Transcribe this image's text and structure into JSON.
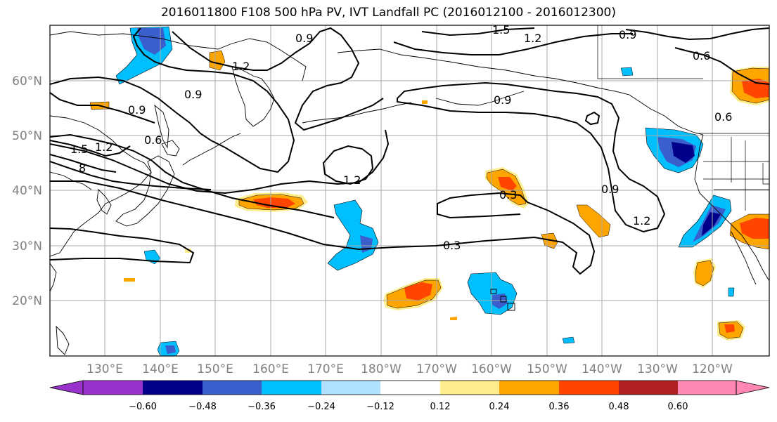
{
  "title": "2016011800 F108 500 hPa PV, IVT Landfall PC (2016012100 - 2016012300)",
  "map": {
    "lat_labels": [
      "60°N",
      "50°N",
      "40°N",
      "30°N",
      "20°N"
    ],
    "lon_labels": [
      "130°E",
      "140°E",
      "150°E",
      "160°E",
      "170°E",
      "180°W",
      "170°W",
      "160°W",
      "150°W",
      "140°W",
      "130°W",
      "120°W"
    ],
    "contour_labels": [
      "1.5",
      "1.2",
      "0.9",
      "0.6",
      "1.2",
      "0.9",
      "0.6",
      "1.5",
      "1.2",
      "8",
      "0.9",
      "0.9",
      "1.2",
      "0.3",
      "0.9",
      "1.2",
      "0.3",
      "0.9",
      "0.6"
    ],
    "colors": {
      "contour": "#000000",
      "grid": "#a0a0a0",
      "coast": "#000000"
    }
  },
  "colorbar": {
    "tick_labels": [
      "−0.60",
      "−0.48",
      "−0.36",
      "−0.24",
      "−0.12",
      "0.12",
      "0.24",
      "0.36",
      "0.48",
      "0.60"
    ],
    "colors": [
      "#9932cc",
      "#00008b",
      "#3a5fcd",
      "#00bfff",
      "#b0e2ff",
      "#ffffff",
      "#ffec8b",
      "#ffa500",
      "#ff4500",
      "#b22222",
      "#ff87b4"
    ]
  }
}
